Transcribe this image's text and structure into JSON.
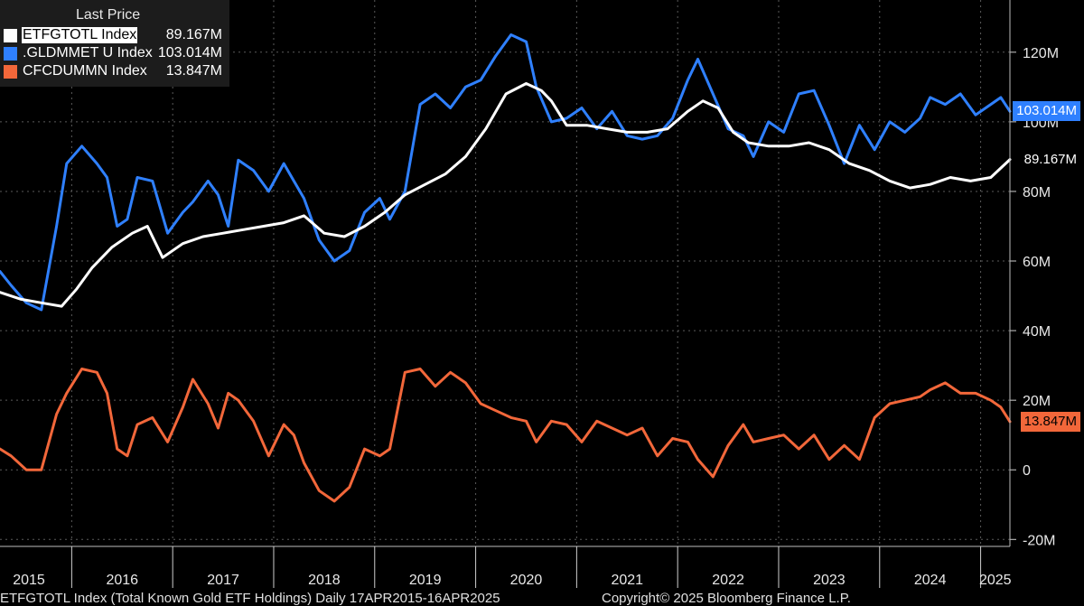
{
  "legend": {
    "title": "Last Price",
    "items": [
      {
        "name": "ETFGTOTL Index",
        "value": "89.167M",
        "color": "#ffffff"
      },
      {
        "name": ".GLDMMET U Index",
        "value": "103.014M",
        "color": "#2f80ff"
      },
      {
        "name": "CFCDUMMN Index",
        "value": "13.847M",
        "color": "#f2673a"
      }
    ]
  },
  "last_value_tags": [
    {
      "label": "103.014M",
      "bg": "#2f80ff",
      "fg": "#ffffff"
    },
    {
      "label": "89.167M",
      "bg": "#000000",
      "fg": "#ffffff"
    },
    {
      "label": "13.847M",
      "bg": "#f2673a",
      "fg": "#000000"
    }
  ],
  "footer": {
    "left": "ETFGTOTL Index (Total Known Gold ETF Holdings)  Daily 17APR2015-16APR2025",
    "right": "Copyright© 2025 Bloomberg Finance L.P."
  },
  "chart_data": {
    "type": "line",
    "title": "",
    "xlabel": "",
    "ylabel": "",
    "xlim": [
      2015.29,
      2025.29
    ],
    "ylim": [
      -22,
      135
    ],
    "y_ticks": [
      -20,
      0,
      20,
      40,
      60,
      80,
      100,
      120
    ],
    "y_tick_labels": [
      "-20M",
      "0",
      "20M",
      "40M",
      "60M",
      "80M",
      "100M",
      "120M"
    ],
    "x_tick_labels": [
      "2015",
      "2016",
      "2017",
      "2018",
      "2019",
      "2020",
      "2021",
      "2022",
      "2023",
      "2024",
      "2025"
    ],
    "grid": true,
    "series": [
      {
        "name": "ETFGTOTL Index",
        "color": "#ffffff",
        "x": [
          2015.29,
          2015.5,
          2015.7,
          2015.9,
          2016.05,
          2016.2,
          2016.4,
          2016.6,
          2016.75,
          2016.9,
          2017.1,
          2017.3,
          2017.5,
          2017.7,
          2017.9,
          2018.1,
          2018.3,
          2018.5,
          2018.7,
          2018.9,
          2019.1,
          2019.3,
          2019.5,
          2019.7,
          2019.9,
          2020.1,
          2020.3,
          2020.5,
          2020.65,
          2020.75,
          2020.9,
          2021.1,
          2021.3,
          2021.5,
          2021.7,
          2021.9,
          2022.1,
          2022.25,
          2022.4,
          2022.55,
          2022.7,
          2022.9,
          2023.1,
          2023.3,
          2023.5,
          2023.7,
          2023.9,
          2024.1,
          2024.3,
          2024.5,
          2024.7,
          2024.9,
          2025.1,
          2025.29
        ],
        "values": [
          51,
          49,
          48,
          47,
          52,
          58,
          64,
          68,
          70,
          61,
          65,
          67,
          68,
          69,
          70,
          71,
          73,
          68,
          67,
          70,
          74,
          79,
          82,
          85,
          90,
          98,
          108,
          111,
          109,
          106,
          99,
          99,
          98,
          97,
          97,
          98,
          103,
          106,
          104,
          97,
          94,
          93,
          93,
          94,
          92,
          88,
          86,
          83,
          81,
          82,
          84,
          83,
          84,
          89.167
        ]
      },
      {
        "name": ".GLDMMET U Index",
        "color": "#2f80ff",
        "x": [
          2015.29,
          2015.4,
          2015.55,
          2015.7,
          2015.85,
          2015.95,
          2016.1,
          2016.25,
          2016.35,
          2016.45,
          2016.55,
          2016.65,
          2016.8,
          2016.95,
          2017.1,
          2017.2,
          2017.35,
          2017.45,
          2017.55,
          2017.65,
          2017.8,
          2017.95,
          2018.1,
          2018.2,
          2018.3,
          2018.45,
          2018.6,
          2018.75,
          2018.9,
          2019.05,
          2019.15,
          2019.3,
          2019.45,
          2019.6,
          2019.75,
          2019.9,
          2020.05,
          2020.2,
          2020.35,
          2020.5,
          2020.6,
          2020.75,
          2020.9,
          2021.05,
          2021.2,
          2021.35,
          2021.5,
          2021.65,
          2021.8,
          2021.95,
          2022.1,
          2022.2,
          2022.35,
          2022.5,
          2022.65,
          2022.75,
          2022.9,
          2023.05,
          2023.2,
          2023.35,
          2023.5,
          2023.65,
          2023.8,
          2023.95,
          2024.1,
          2024.25,
          2024.4,
          2024.5,
          2024.65,
          2024.8,
          2024.95,
          2025.1,
          2025.2,
          2025.29
        ],
        "values": [
          57,
          53,
          48,
          46,
          70,
          88,
          93,
          88,
          84,
          70,
          72,
          84,
          83,
          68,
          74,
          77,
          83,
          79,
          70,
          89,
          86,
          80,
          88,
          83,
          78,
          66,
          60,
          63,
          74,
          78,
          72,
          80,
          105,
          108,
          104,
          110,
          112,
          119,
          125,
          123,
          110,
          100,
          101,
          104,
          98,
          103,
          96,
          95,
          96,
          101,
          112,
          118,
          108,
          98,
          96,
          90,
          100,
          97,
          108,
          109,
          99,
          88,
          99,
          92,
          100,
          97,
          101,
          107,
          105,
          108,
          102,
          105,
          107,
          103.014
        ]
      },
      {
        "name": "CFCDUMMN Index",
        "color": "#f2673a",
        "x": [
          2015.29,
          2015.4,
          2015.55,
          2015.7,
          2015.85,
          2015.95,
          2016.1,
          2016.25,
          2016.35,
          2016.45,
          2016.55,
          2016.65,
          2016.8,
          2016.95,
          2017.1,
          2017.2,
          2017.35,
          2017.45,
          2017.55,
          2017.65,
          2017.8,
          2017.95,
          2018.1,
          2018.2,
          2018.3,
          2018.45,
          2018.6,
          2018.75,
          2018.9,
          2019.05,
          2019.15,
          2019.3,
          2019.45,
          2019.6,
          2019.75,
          2019.9,
          2020.05,
          2020.2,
          2020.35,
          2020.5,
          2020.6,
          2020.75,
          2020.9,
          2021.05,
          2021.2,
          2021.35,
          2021.5,
          2021.65,
          2021.8,
          2021.95,
          2022.1,
          2022.2,
          2022.35,
          2022.5,
          2022.65,
          2022.75,
          2022.9,
          2023.05,
          2023.2,
          2023.35,
          2023.5,
          2023.65,
          2023.8,
          2023.95,
          2024.1,
          2024.25,
          2024.4,
          2024.5,
          2024.65,
          2024.8,
          2024.95,
          2025.1,
          2025.2,
          2025.29
        ],
        "values": [
          6,
          4,
          0,
          0,
          16,
          22,
          29,
          28,
          22,
          6,
          4,
          13,
          15,
          8,
          18,
          26,
          19,
          12,
          22,
          20,
          14,
          4,
          13,
          10,
          2,
          -6,
          -9,
          -5,
          6,
          4,
          6,
          28,
          29,
          24,
          28,
          25,
          19,
          17,
          15,
          14,
          8,
          14,
          13,
          8,
          14,
          12,
          10,
          12,
          4,
          9,
          8,
          3,
          -2,
          7,
          13,
          8,
          9,
          10,
          6,
          10,
          3,
          7,
          3,
          15,
          19,
          20,
          21,
          23,
          25,
          22,
          22,
          20,
          18,
          13.847
        ]
      }
    ]
  }
}
